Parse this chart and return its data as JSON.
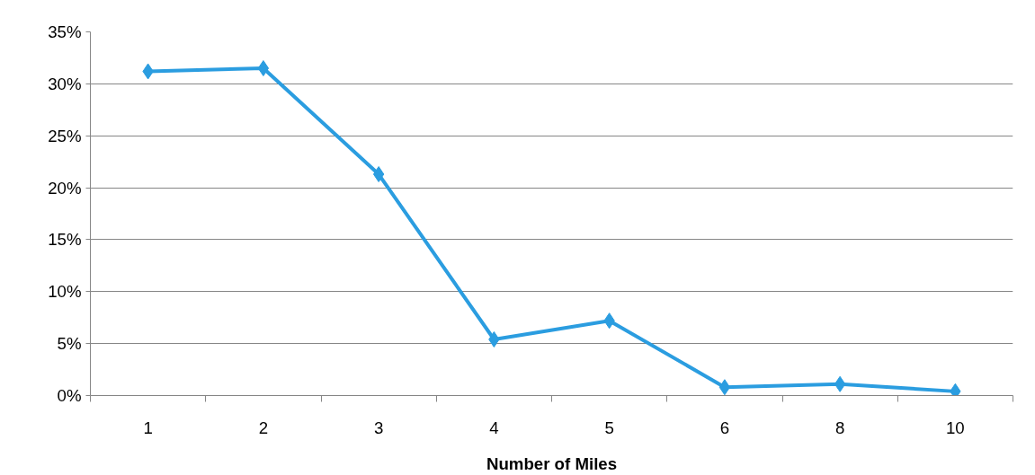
{
  "chart_data": {
    "type": "line",
    "xlabel": "Number of Miles",
    "categories": [
      "1",
      "2",
      "3",
      "4",
      "5",
      "6",
      "8",
      "10"
    ],
    "series": [
      {
        "color": "#2b9de0",
        "values": [
          31.2,
          31.5,
          21.3,
          5.4,
          7.2,
          0.8,
          1.1,
          0.4
        ]
      }
    ],
    "ylim": [
      0,
      35
    ],
    "yticks": [
      {
        "value": 0,
        "label": "0%"
      },
      {
        "value": 5,
        "label": "5%"
      },
      {
        "value": 10,
        "label": "10%"
      },
      {
        "value": 15,
        "label": "15%"
      },
      {
        "value": 20,
        "label": "20%"
      },
      {
        "value": 25,
        "label": "25%"
      },
      {
        "value": 30,
        "label": "30%"
      },
      {
        "value": 35,
        "label": "35%"
      }
    ],
    "grid": "y",
    "marker": "diamond",
    "line_style": "solid"
  }
}
